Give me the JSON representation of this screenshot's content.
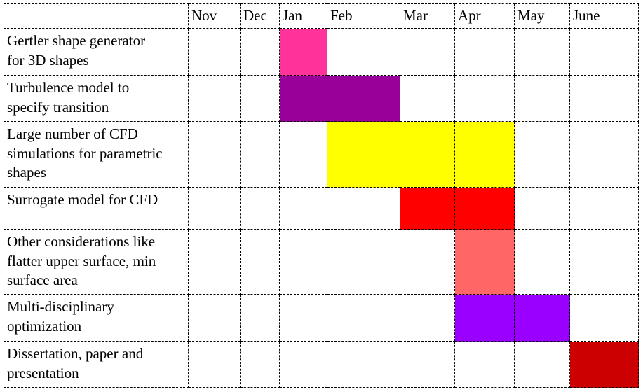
{
  "months": [
    "Nov",
    "Dec",
    "Jan",
    "Feb",
    "Mar",
    "Apr",
    "May",
    "June"
  ],
  "tasks": [
    {
      "label": "Gertler shape generator\nfor 3D shapes",
      "cells": [
        null,
        null,
        "#ff3399",
        null,
        null,
        null,
        null,
        null
      ]
    },
    {
      "label": "Turbulence model to\nspecify transition",
      "cells": [
        null,
        null,
        "#990099",
        "#990099",
        null,
        null,
        null,
        null
      ]
    },
    {
      "label": "Large number of CFD\nsimulations for parametric\nshapes",
      "cells": [
        null,
        null,
        null,
        "#ffff00",
        "#ffff00",
        "#ffff00",
        null,
        null
      ]
    },
    {
      "label": "Surrogate model for CFD",
      "cells": [
        null,
        null,
        null,
        null,
        "#ff0000",
        "#ff0000",
        null,
        null
      ]
    },
    {
      "label": "Other considerations like\nflatter upper surface, min\nsurface area",
      "cells": [
        null,
        null,
        null,
        null,
        null,
        "#ff6666",
        null,
        null
      ]
    },
    {
      "label": "Multi-disciplinary\noptimization",
      "cells": [
        null,
        null,
        null,
        null,
        null,
        "#9900ff",
        "#9900ff",
        null
      ]
    },
    {
      "label": "Dissertation, paper and\npresentation",
      "cells": [
        null,
        null,
        null,
        null,
        null,
        null,
        null,
        "#cc0000"
      ]
    }
  ]
}
